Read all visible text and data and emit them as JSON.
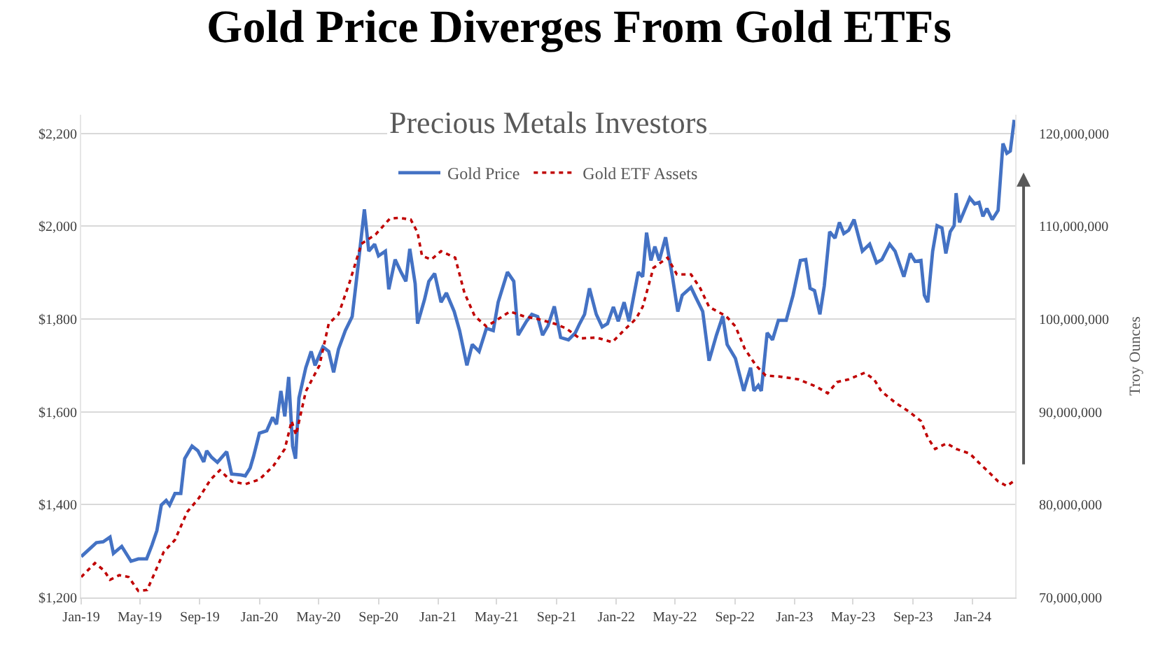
{
  "chart_data": {
    "type": "line",
    "title": "Gold Price Diverges From Gold ETFs",
    "subtitle": "Precious Metals Investors",
    "y2label": "Troy Ounces",
    "legend": "top",
    "grid": "y",
    "marker": "none",
    "xlim": [
      "2019-01-01",
      "2024-03-28"
    ],
    "xticks": [
      {
        "value": "2019-01",
        "label": "Jan-19"
      },
      {
        "value": "2019-05",
        "label": "May-19"
      },
      {
        "value": "2019-09",
        "label": "Sep-19"
      },
      {
        "value": "2020-01",
        "label": "Jan-20"
      },
      {
        "value": "2020-05",
        "label": "May-20"
      },
      {
        "value": "2020-09",
        "label": "Sep-20"
      },
      {
        "value": "2021-01",
        "label": "Jan-21"
      },
      {
        "value": "2021-05",
        "label": "May-21"
      },
      {
        "value": "2021-09",
        "label": "Sep-21"
      },
      {
        "value": "2022-01",
        "label": "Jan-22"
      },
      {
        "value": "2022-05",
        "label": "May-22"
      },
      {
        "value": "2022-09",
        "label": "Sep-22"
      },
      {
        "value": "2023-01",
        "label": "Jan-23"
      },
      {
        "value": "2023-05",
        "label": "May-23"
      },
      {
        "value": "2023-09",
        "label": "Sep-23"
      },
      {
        "value": "2024-01",
        "label": "Jan-24"
      }
    ],
    "ylim": [
      1200,
      2240
    ],
    "yticks": [
      {
        "value": 1200,
        "label": "$1,200"
      },
      {
        "value": 1400,
        "label": "$1,400"
      },
      {
        "value": 1600,
        "label": "$1,600"
      },
      {
        "value": 1800,
        "label": "$1,800"
      },
      {
        "value": 2000,
        "label": "$2,000"
      },
      {
        "value": 2200,
        "label": "$2,200"
      }
    ],
    "y2lim": [
      70000000,
      122000000
    ],
    "y2ticks": [
      {
        "value": 70000000,
        "label": "70,000,000"
      },
      {
        "value": 80000000,
        "label": "80,000,000"
      },
      {
        "value": 90000000,
        "label": "90,000,000"
      },
      {
        "value": 100000000,
        "label": "100,000,000"
      },
      {
        "value": 110000000,
        "label": "110,000,000"
      },
      {
        "value": 120000000,
        "label": "120,000,000"
      }
    ],
    "series": [
      {
        "name": "Gold Price",
        "color": "#4472c4",
        "line_style": "solid",
        "x": [
          "2019-01-01",
          "2019-02-01",
          "2019-02-15",
          "2019-03-01",
          "2019-03-08",
          "2019-03-25",
          "2019-04-13",
          "2019-04-28",
          "2019-05-15",
          "2019-05-26",
          "2019-06-05",
          "2019-06-14",
          "2019-06-24",
          "2019-07-01",
          "2019-07-12",
          "2019-07-24",
          "2019-08-01",
          "2019-08-16",
          "2019-08-28",
          "2019-09-09",
          "2019-09-15",
          "2019-09-25",
          "2019-10-07",
          "2019-10-26",
          "2019-11-05",
          "2019-11-24",
          "2019-12-03",
          "2019-12-13",
          "2019-12-20",
          "2020-01-01",
          "2020-01-16",
          "2020-01-28",
          "2020-02-05",
          "2020-02-14",
          "2020-02-22",
          "2020-03-01",
          "2020-03-09",
          "2020-03-15",
          "2020-03-22",
          "2020-04-05",
          "2020-04-16",
          "2020-04-24",
          "2020-05-10",
          "2020-05-22",
          "2020-06-01",
          "2020-06-11",
          "2020-06-25",
          "2020-07-09",
          "2020-07-18",
          "2020-08-03",
          "2020-08-12",
          "2020-08-24",
          "2020-09-01",
          "2020-09-15",
          "2020-09-22",
          "2020-10-05",
          "2020-10-17",
          "2020-10-27",
          "2020-11-04",
          "2020-11-15",
          "2020-11-20",
          "2020-12-04",
          "2020-12-13",
          "2020-12-25",
          "2021-01-07",
          "2021-01-18",
          "2021-02-03",
          "2021-02-14",
          "2021-03-01",
          "2021-03-12",
          "2021-03-26",
          "2021-04-10",
          "2021-04-24",
          "2021-05-04",
          "2021-05-23",
          "2021-06-05",
          "2021-06-14",
          "2021-07-01",
          "2021-07-12",
          "2021-07-24",
          "2021-08-03",
          "2021-08-14",
          "2021-08-27",
          "2021-09-09",
          "2021-09-25",
          "2021-10-09",
          "2021-10-18",
          "2021-10-28",
          "2021-11-07",
          "2021-11-21",
          "2021-12-03",
          "2021-12-14",
          "2021-12-26",
          "2022-01-05",
          "2022-01-17",
          "2022-01-27",
          "2022-02-15",
          "2022-02-24",
          "2022-03-04",
          "2022-03-13",
          "2022-03-21",
          "2022-03-30",
          "2022-04-12",
          "2022-04-26",
          "2022-05-07",
          "2022-05-16",
          "2022-06-03",
          "2022-06-13",
          "2022-06-27",
          "2022-07-10",
          "2022-07-25",
          "2022-08-07",
          "2022-08-16",
          "2022-09-02",
          "2022-09-19",
          "2022-10-03",
          "2022-10-10",
          "2022-10-19",
          "2022-10-25",
          "2022-11-06",
          "2022-11-17",
          "2022-11-29",
          "2022-12-15",
          "2022-12-29",
          "2023-01-13",
          "2023-01-24",
          "2023-02-02",
          "2023-02-11",
          "2023-02-22",
          "2023-03-03",
          "2023-03-14",
          "2023-03-25",
          "2023-04-03",
          "2023-04-12",
          "2023-04-22",
          "2023-05-03",
          "2023-05-20",
          "2023-06-04",
          "2023-06-18",
          "2023-06-29",
          "2023-07-15",
          "2023-07-26",
          "2023-08-13",
          "2023-08-26",
          "2023-09-05",
          "2023-09-17",
          "2023-09-24",
          "2023-10-01",
          "2023-10-11",
          "2023-10-20",
          "2023-10-30",
          "2023-11-07",
          "2023-11-16",
          "2023-11-24",
          "2023-11-28",
          "2023-12-05",
          "2023-12-16",
          "2023-12-26",
          "2024-01-05",
          "2024-01-14",
          "2024-01-22",
          "2024-01-30",
          "2024-02-10",
          "2024-02-22",
          "2024-03-03",
          "2024-03-11",
          "2024-03-18",
          "2024-03-26"
        ],
        "values": [
          1288,
          1318,
          1320,
          1330,
          1295,
          1310,
          1278,
          1283,
          1283,
          1313,
          1344,
          1399,
          1409,
          1399,
          1424,
          1424,
          1499,
          1526,
          1516,
          1492,
          1516,
          1502,
          1491,
          1514,
          1466,
          1464,
          1462,
          1479,
          1504,
          1554,
          1559,
          1588,
          1573,
          1645,
          1590,
          1675,
          1526,
          1499,
          1630,
          1695,
          1730,
          1700,
          1740,
          1730,
          1685,
          1735,
          1775,
          1805,
          1886,
          2036,
          1946,
          1961,
          1936,
          1946,
          1864,
          1928,
          1901,
          1881,
          1951,
          1876,
          1790,
          1841,
          1881,
          1898,
          1836,
          1856,
          1816,
          1775,
          1700,
          1745,
          1730,
          1780,
          1775,
          1836,
          1901,
          1881,
          1765,
          1795,
          1810,
          1805,
          1765,
          1785,
          1827,
          1760,
          1755,
          1770,
          1790,
          1810,
          1866,
          1810,
          1783,
          1790,
          1826,
          1795,
          1836,
          1795,
          1901,
          1891,
          1986,
          1926,
          1956,
          1926,
          1976,
          1891,
          1816,
          1851,
          1868,
          1846,
          1816,
          1710,
          1765,
          1806,
          1745,
          1715,
          1645,
          1695,
          1645,
          1657,
          1645,
          1770,
          1755,
          1797,
          1797,
          1851,
          1926,
          1928,
          1866,
          1861,
          1810,
          1871,
          1988,
          1974,
          2008,
          1984,
          1991,
          2014,
          1946,
          1961,
          1921,
          1928,
          1961,
          1946,
          1891,
          1941,
          1924,
          1926,
          1851,
          1836,
          1946,
          2001,
          1996,
          1941,
          1988,
          2001,
          2071,
          2008,
          2036,
          2061,
          2048,
          2051,
          2021,
          2038,
          2014,
          2034,
          2178,
          2157,
          2162,
          2229
        ]
      },
      {
        "name": "Gold ETF Assets",
        "color": "#c00000",
        "line_style": "dotted",
        "axis": "y2",
        "x": [
          "2019-01-01",
          "2019-01-29",
          "2019-02-17",
          "2019-03-01",
          "2019-03-20",
          "2019-04-08",
          "2019-04-28",
          "2019-05-16",
          "2019-06-01",
          "2019-06-19",
          "2019-07-12",
          "2019-08-06",
          "2019-08-30",
          "2019-09-23",
          "2019-10-12",
          "2019-11-05",
          "2019-12-03",
          "2020-01-01",
          "2020-01-30",
          "2020-02-22",
          "2020-03-07",
          "2020-03-16",
          "2020-04-05",
          "2020-05-03",
          "2020-05-22",
          "2020-06-11",
          "2020-07-04",
          "2020-07-28",
          "2020-08-26",
          "2020-09-24",
          "2020-10-13",
          "2020-11-06",
          "2020-11-20",
          "2020-11-29",
          "2020-12-18",
          "2021-01-07",
          "2021-02-05",
          "2021-02-24",
          "2021-03-17",
          "2021-04-10",
          "2021-04-29",
          "2021-05-28",
          "2021-06-25",
          "2021-07-24",
          "2021-08-27",
          "2021-09-20",
          "2021-10-18",
          "2021-11-21",
          "2021-12-24",
          "2022-01-17",
          "2022-02-10",
          "2022-02-24",
          "2022-03-18",
          "2022-04-16",
          "2022-05-05",
          "2022-06-03",
          "2022-06-22",
          "2022-07-10",
          "2022-08-14",
          "2022-09-02",
          "2022-09-21",
          "2022-10-14",
          "2022-11-03",
          "2022-12-01",
          "2023-01-09",
          "2023-02-15",
          "2023-03-10",
          "2023-03-29",
          "2023-04-22",
          "2023-05-25",
          "2023-06-13",
          "2023-06-28",
          "2023-07-26",
          "2023-08-24",
          "2023-09-17",
          "2023-10-01",
          "2023-10-16",
          "2023-11-09",
          "2023-11-28",
          "2023-12-26",
          "2024-01-14",
          "2024-02-03",
          "2024-02-22",
          "2024-03-11",
          "2024-03-24"
        ],
        "values": [
          72200000,
          73700000,
          72900000,
          71900000,
          72400000,
          72200000,
          70700000,
          70800000,
          72700000,
          74900000,
          76200000,
          79200000,
          80700000,
          82700000,
          83700000,
          82500000,
          82200000,
          82700000,
          84200000,
          86000000,
          89000000,
          87500000,
          92200000,
          95000000,
          99500000,
          100500000,
          104000000,
          108100000,
          109100000,
          110800000,
          110900000,
          110700000,
          109300000,
          106800000,
          106400000,
          107300000,
          106600000,
          102800000,
          100300000,
          99200000,
          99800000,
          100800000,
          100300000,
          100000000,
          99500000,
          99000000,
          97900000,
          98000000,
          97500000,
          98800000,
          100000000,
          101300000,
          105500000,
          106600000,
          104800000,
          104800000,
          103300000,
          101300000,
          100300000,
          99200000,
          96800000,
          95000000,
          93900000,
          93800000,
          93500000,
          92700000,
          92000000,
          93200000,
          93500000,
          94200000,
          93500000,
          92200000,
          91000000,
          90000000,
          89000000,
          87200000,
          86000000,
          86600000,
          86000000,
          85500000,
          84500000,
          83500000,
          82500000,
          82000000,
          82500000
        ]
      }
    ]
  }
}
